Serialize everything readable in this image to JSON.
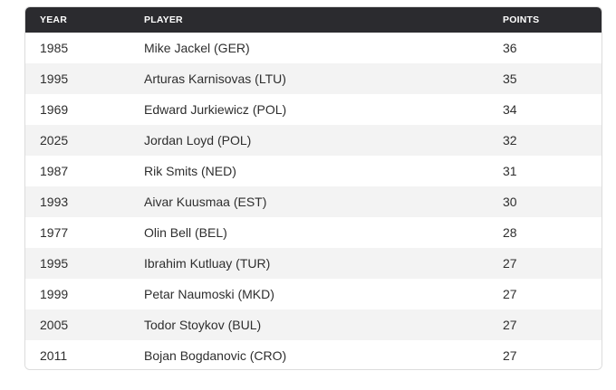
{
  "table": {
    "headers": {
      "year": "YEAR",
      "player": "PLAYER",
      "points": "POINTS"
    },
    "rows": [
      {
        "year": "1985",
        "player": "Mike Jackel (GER)",
        "points": "36"
      },
      {
        "year": "1995",
        "player": "Arturas Karnisovas (LTU)",
        "points": "35"
      },
      {
        "year": "1969",
        "player": "Edward Jurkiewicz (POL)",
        "points": "34"
      },
      {
        "year": "2025",
        "player": "Jordan Loyd (POL)",
        "points": "32"
      },
      {
        "year": "1987",
        "player": "Rik Smits (NED)",
        "points": "31"
      },
      {
        "year": "1993",
        "player": "Aivar Kuusmaa (EST)",
        "points": "30"
      },
      {
        "year": "1977",
        "player": "Olin Bell (BEL)",
        "points": "28"
      },
      {
        "year": "1995",
        "player": "Ibrahim Kutluay (TUR)",
        "points": "27"
      },
      {
        "year": "1999",
        "player": "Petar Naumoski (MKD)",
        "points": "27"
      },
      {
        "year": "2005",
        "player": "Todor Stoykov (BUL)",
        "points": "27"
      },
      {
        "year": "2011",
        "player": "Bojan Bogdanovic (CRO)",
        "points": "27"
      }
    ]
  },
  "colors": {
    "header_background": "#2b2b2f",
    "header_text": "#ffffff",
    "row_alt_background": "#f3f3f3",
    "border": "#dcdcdc"
  }
}
